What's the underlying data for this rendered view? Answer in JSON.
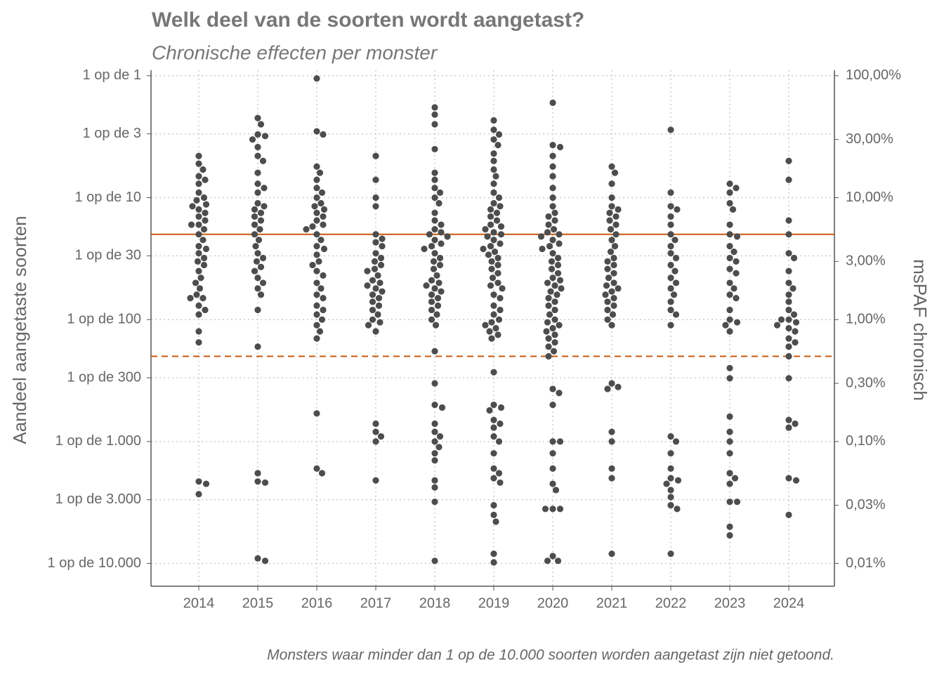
{
  "chart_data": {
    "type": "beeswarm",
    "title": "Welk deel van de soorten wordt aangetast?",
    "subtitle": "Chronische effecten per monster",
    "y_label": "Aandeel aangetaste soorten",
    "y2_label": "msPAF chronisch",
    "footnote": "Monsters waar minder dan 1 op de 10.000 soorten worden aangetast zijn niet getoond.",
    "log_scale": true,
    "grid": true,
    "color": "#4d4d4d",
    "ylim": [
      0.0065,
      111
    ],
    "y2lim": [
      0.0065,
      111
    ],
    "yticks": [
      {
        "value": 100,
        "label": "1 op de 1"
      },
      {
        "value": 33.333,
        "label": "1 op de 3"
      },
      {
        "value": 10,
        "label": "1 op de 10"
      },
      {
        "value": 3.3333,
        "label": "1 op de 30"
      },
      {
        "value": 1,
        "label": "1 op de 100"
      },
      {
        "value": 0.33333,
        "label": "1 op de 300"
      },
      {
        "value": 0.1,
        "label": "1 op de 1.000"
      },
      {
        "value": 0.033333,
        "label": "1 op de 3.000"
      },
      {
        "value": 0.01,
        "label": "1 op de 10.000"
      }
    ],
    "y2ticks": [
      {
        "value": 100,
        "label": "100,00%"
      },
      {
        "value": 30,
        "label": "30,00%"
      },
      {
        "value": 10,
        "label": "10,00%"
      },
      {
        "value": 3,
        "label": "3,00%"
      },
      {
        "value": 1,
        "label": "1,00%"
      },
      {
        "value": 0.3,
        "label": "0,30%"
      },
      {
        "value": 0.1,
        "label": "0,10%"
      },
      {
        "value": 0.03,
        "label": "0,03%"
      },
      {
        "value": 0.01,
        "label": "0,01%"
      }
    ],
    "reference_lines": [
      {
        "value": 5,
        "style": "solid",
        "color": "#c55a11"
      },
      {
        "value": 0.5,
        "style": "dashed",
        "color": "#c55a11"
      }
    ],
    "categories": [
      "2014",
      "2015",
      "2016",
      "2017",
      "2018",
      "2019",
      "2020",
      "2021",
      "2022",
      "2023",
      "2024"
    ],
    "values": [
      [
        22,
        19,
        17,
        15,
        14,
        13,
        11,
        10,
        9.5,
        8.8,
        8.5,
        8,
        7.5,
        7,
        6.5,
        6,
        6,
        5.5,
        5,
        4.5,
        4,
        3.8,
        3.5,
        3.2,
        3,
        2.8,
        2.5,
        2.2,
        2,
        1.8,
        1.6,
        1.5,
        1.5,
        1.3,
        1.2,
        1.1,
        0.8,
        0.65,
        0.047,
        0.045,
        0.037
      ],
      [
        45,
        40,
        33,
        32,
        30,
        26,
        22,
        20,
        16,
        13,
        12,
        11,
        9,
        8.5,
        8,
        7.5,
        7,
        6.5,
        6,
        5.5,
        5,
        4.5,
        4,
        3.5,
        3.2,
        3,
        2.7,
        2.5,
        2.2,
        2,
        1.8,
        1.6,
        1.2,
        0.6,
        0.055,
        0.047,
        0.046,
        0.011,
        0.0105
      ],
      [
        95,
        35,
        33,
        18,
        16,
        14,
        12,
        11,
        10,
        9,
        8.5,
        8,
        7.5,
        7,
        6.5,
        6,
        5.8,
        5.5,
        5,
        4.5,
        4,
        3.8,
        3.4,
        3,
        2.8,
        2.5,
        2.3,
        2,
        1.8,
        1.6,
        1.5,
        1.3,
        1.2,
        1.1,
        1.0,
        0.9,
        0.8,
        0.7,
        0.17,
        0.06,
        0.055
      ],
      [
        22,
        14,
        10,
        8.5,
        5,
        4.6,
        4.3,
        4,
        3.5,
        3.2,
        3,
        2.8,
        2.6,
        2.5,
        2.3,
        2.1,
        2,
        1.9,
        1.8,
        1.7,
        1.6,
        1.5,
        1.4,
        1.3,
        1.2,
        1.1,
        1.0,
        0.95,
        0.9,
        0.8,
        0.14,
        0.12,
        0.11,
        0.1,
        0.048
      ],
      [
        55,
        48,
        40,
        25,
        16,
        14,
        12,
        11,
        10,
        9,
        7.5,
        6.5,
        6,
        5.5,
        5.2,
        5,
        4.8,
        4.5,
        4.2,
        4,
        3.8,
        3.5,
        3.2,
        3,
        2.8,
        2.6,
        2.3,
        2.1,
        2,
        1.9,
        1.8,
        1.7,
        1.6,
        1.5,
        1.4,
        1.3,
        1.2,
        1.1,
        1.0,
        0.9,
        0.55,
        0.3,
        0.2,
        0.19,
        0.14,
        0.12,
        0.11,
        0.1,
        0.09,
        0.08,
        0.07,
        0.048,
        0.042,
        0.032,
        0.0105
      ],
      [
        43,
        36,
        33,
        30,
        27,
        23,
        20,
        17,
        15,
        13,
        11,
        10,
        9,
        8.5,
        8,
        7.5,
        7,
        6.5,
        6,
        5.8,
        5.5,
        5.2,
        5,
        4.8,
        4.5,
        4.2,
        4,
        3.8,
        3.6,
        3.4,
        3.2,
        3,
        2.8,
        2.6,
        2.4,
        2.2,
        2,
        1.9,
        1.8,
        1.6,
        1.5,
        1.3,
        1.2,
        1.1,
        1.0,
        0.95,
        0.9,
        0.85,
        0.8,
        0.75,
        0.7,
        0.37,
        0.2,
        0.19,
        0.18,
        0.15,
        0.14,
        0.13,
        0.11,
        0.1,
        0.08,
        0.06,
        0.055,
        0.05,
        0.046,
        0.03,
        0.025,
        0.022,
        0.012,
        0.0102
      ],
      [
        60,
        27,
        26,
        22,
        18,
        15,
        12,
        10,
        8.5,
        7.5,
        7,
        6.5,
        6,
        5.5,
        5.2,
        5,
        4.8,
        4.5,
        4.2,
        4,
        3.8,
        3.5,
        3.2,
        3,
        2.8,
        2.6,
        2.4,
        2.2,
        2.1,
        2,
        1.9,
        1.8,
        1.7,
        1.6,
        1.5,
        1.4,
        1.3,
        1.2,
        1.1,
        1.0,
        0.95,
        0.9,
        0.85,
        0.8,
        0.75,
        0.7,
        0.65,
        0.6,
        0.55,
        0.5,
        0.27,
        0.25,
        0.2,
        0.1,
        0.1,
        0.08,
        0.06,
        0.045,
        0.04,
        0.028,
        0.028,
        0.028,
        0.0105,
        0.0105,
        0.0115
      ],
      [
        18,
        16,
        13,
        10,
        8.5,
        8,
        7.5,
        7,
        6.5,
        6,
        5.5,
        5,
        4.5,
        4,
        3.6,
        3.2,
        3,
        2.8,
        2.6,
        2.4,
        2.2,
        2,
        1.9,
        1.8,
        1.7,
        1.6,
        1.5,
        1.4,
        1.3,
        1.2,
        1.1,
        1.0,
        0.9,
        0.3,
        0.28,
        0.27,
        0.12,
        0.1,
        0.06,
        0.05,
        0.012
      ],
      [
        36,
        11,
        8.5,
        8,
        7,
        6,
        5,
        4.5,
        4,
        3.5,
        3.2,
        2.8,
        2.5,
        2.2,
        2,
        1.8,
        1.6,
        1.4,
        1.2,
        1.1,
        0.9,
        0.11,
        0.1,
        0.08,
        0.06,
        0.05,
        0.048,
        0.045,
        0.04,
        0.035,
        0.03,
        0.028,
        0.012
      ],
      [
        13,
        12,
        11,
        9,
        8,
        6,
        5,
        4.8,
        4,
        3.6,
        3.2,
        3,
        2.6,
        2.4,
        2,
        1.8,
        1.6,
        1.5,
        1.2,
        1.0,
        0.95,
        0.9,
        0.8,
        0.4,
        0.33,
        0.16,
        0.12,
        0.1,
        0.08,
        0.055,
        0.05,
        0.045,
        0.032,
        0.032,
        0.02,
        0.017
      ],
      [
        20,
        14,
        6.5,
        5,
        3.5,
        3.2,
        2.5,
        2,
        1.8,
        1.6,
        1.4,
        1.2,
        1.1,
        1.0,
        1.0,
        0.95,
        0.9,
        0.85,
        0.8,
        0.7,
        0.65,
        0.6,
        0.5,
        0.33,
        0.15,
        0.14,
        0.13,
        0.05,
        0.048,
        0.025
      ]
    ]
  }
}
